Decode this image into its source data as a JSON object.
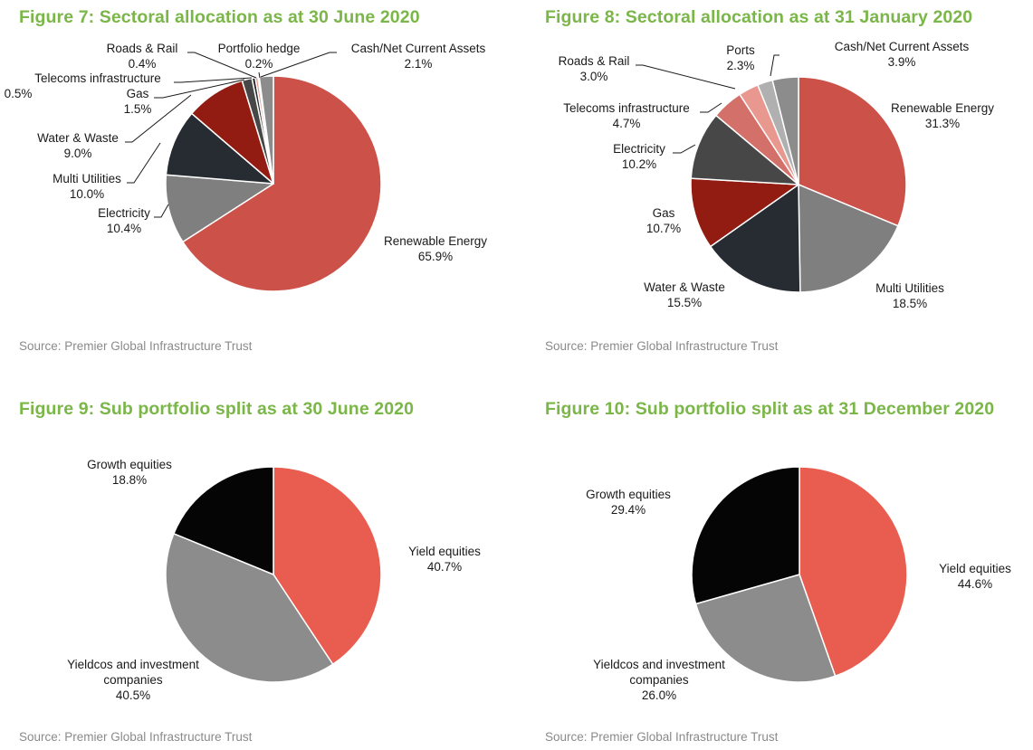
{
  "source_text": "Source: Premier Global Infrastructure Trust",
  "chart_data": [
    {
      "id": "fig7",
      "type": "pie",
      "title": "Figure 7: Sectoral allocation as at 30 June 2020",
      "start": "12 o'clock",
      "direction": "clockwise",
      "unit": "%",
      "slices": [
        {
          "label": "Renewable Energy",
          "value": 65.9,
          "value_text": "65.9%",
          "color": "#cc5148"
        },
        {
          "label": "Electricity",
          "value": 10.4,
          "value_text": "10.4%",
          "color": "#7f7f7f"
        },
        {
          "label": "Multi Utilities",
          "value": 10.0,
          "value_text": "10.0%",
          "color": "#272c33"
        },
        {
          "label": "Water & Waste",
          "value": 9.0,
          "value_text": "9.0%",
          "color": "#921c12"
        },
        {
          "label": "Gas",
          "value": 1.5,
          "value_text": "1.5%",
          "color": "#474747"
        },
        {
          "label": "Telecoms infrastructure",
          "value": 0.5,
          "value_text": "0.5%",
          "color": "#2b2b2b"
        },
        {
          "label": "Roads & Rail",
          "value": 0.4,
          "value_text": "0.4%",
          "color": "#e8988f"
        },
        {
          "label": "Portfolio hedge",
          "value": 0.2,
          "value_text": "0.2%",
          "color": "#d4706a"
        },
        {
          "label": "Cash/Net Current Assets",
          "value": 2.1,
          "value_text": "2.1%",
          "color": "#8c8c8c"
        }
      ]
    },
    {
      "id": "fig8",
      "type": "pie",
      "title": "Figure 8: Sectoral allocation as at 31 January 2020",
      "start": "12 o'clock",
      "direction": "clockwise",
      "unit": "%",
      "slices": [
        {
          "label": "Renewable Energy",
          "value": 31.3,
          "value_text": "31.3%",
          "color": "#cc5148"
        },
        {
          "label": "Multi Utilities",
          "value": 18.5,
          "value_text": "18.5%",
          "color": "#7f7f7f"
        },
        {
          "label": "Water & Waste",
          "value": 15.5,
          "value_text": "15.5%",
          "color": "#272c33"
        },
        {
          "label": "Gas",
          "value": 10.7,
          "value_text": "10.7%",
          "color": "#921c12"
        },
        {
          "label": "Electricity",
          "value": 10.2,
          "value_text": "10.2%",
          "color": "#474747"
        },
        {
          "label": "Telecoms infrastructure",
          "value": 4.7,
          "value_text": "4.7%",
          "color": "#d4706a"
        },
        {
          "label": "Roads & Rail",
          "value": 3.0,
          "value_text": "3.0%",
          "color": "#e8988f"
        },
        {
          "label": "Ports",
          "value": 2.3,
          "value_text": "2.3%",
          "color": "#b0b0b0"
        },
        {
          "label": "Cash/Net Current Assets",
          "value": 3.9,
          "value_text": "3.9%",
          "color": "#8c8c8c"
        }
      ]
    },
    {
      "id": "fig9",
      "type": "pie",
      "title": "Figure 9: Sub portfolio split as at 30 June 2020",
      "start": "12 o'clock",
      "direction": "clockwise",
      "unit": "%",
      "slices": [
        {
          "label": "Yield equities",
          "value": 40.7,
          "value_text": "40.7%",
          "color": "#e85d4f"
        },
        {
          "label": "Yieldcos and investment companies",
          "label_lines": [
            "Yieldcos and investment",
            "companies"
          ],
          "value": 40.5,
          "value_text": "40.5%",
          "color": "#8c8c8c"
        },
        {
          "label": "Growth equities",
          "value": 18.8,
          "value_text": "18.8%",
          "color": "#050505"
        }
      ]
    },
    {
      "id": "fig10",
      "type": "pie",
      "title": "Figure 10: Sub portfolio split as at 31 December 2020",
      "start": "12 o'clock",
      "direction": "clockwise",
      "unit": "%",
      "slices": [
        {
          "label": "Yield equities",
          "value": 44.6,
          "value_text": "44.6%",
          "color": "#e85d4f"
        },
        {
          "label": "Yieldcos and investment companies",
          "label_lines": [
            "Yieldcos and investment",
            "companies"
          ],
          "value": 26.0,
          "value_text": "26.0%",
          "color": "#8c8c8c"
        },
        {
          "label": "Growth equities",
          "value": 29.4,
          "value_text": "29.4%",
          "color": "#050505"
        }
      ]
    }
  ]
}
